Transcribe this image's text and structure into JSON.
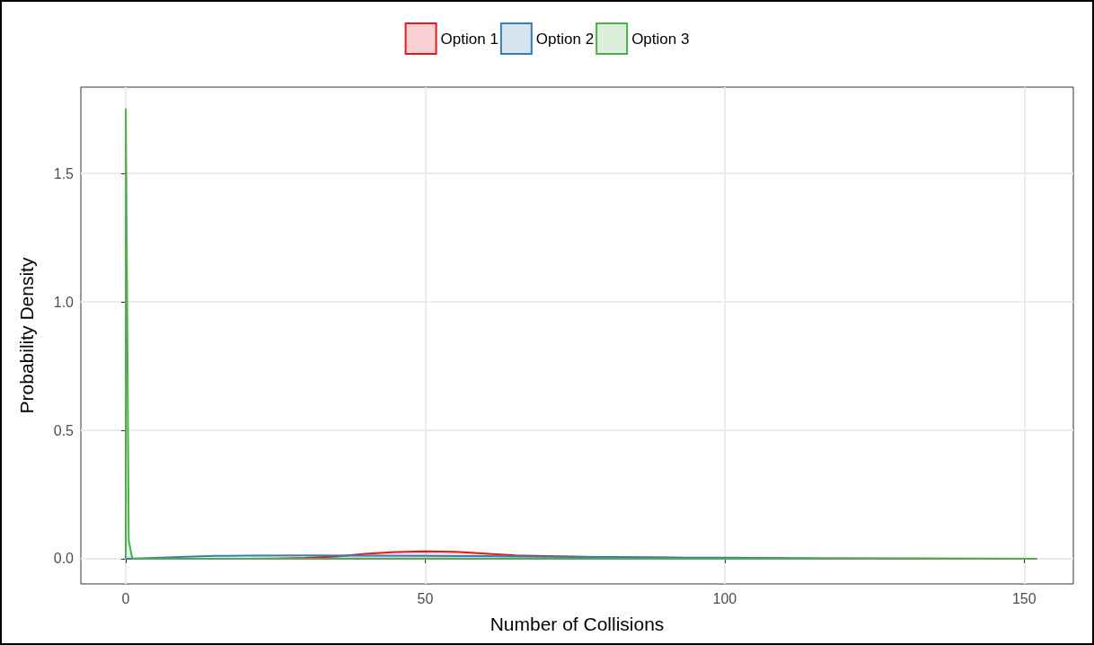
{
  "chart_data": {
    "type": "area",
    "xlabel": "Number of Collisions",
    "ylabel": "Probability Density",
    "xlim": [
      -7.5,
      158.2
    ],
    "xticks": [
      0,
      50,
      100,
      150
    ],
    "ylim": [
      -0.098,
      1.836
    ],
    "yticks": [
      {
        "value": 0,
        "label": "0.0"
      },
      0.5,
      {
        "value": 1,
        "label": "1.0"
      },
      1.5
    ],
    "grid": true,
    "legend": "top",
    "marker": "none",
    "line_style": "solid",
    "series": [
      {
        "name": "Option 1",
        "color": "#e41a1c",
        "x": [
          0,
          10,
          20,
          25,
          30,
          35,
          40,
          45,
          50,
          55,
          60,
          65,
          70,
          80,
          90,
          100,
          120,
          152
        ],
        "values": [
          0,
          0,
          0,
          0.001,
          0.003,
          0.009,
          0.019,
          0.026,
          0.029,
          0.027,
          0.02,
          0.013,
          0.01,
          0.006,
          0.004,
          0.002,
          0.001,
          0
        ]
      },
      {
        "name": "Option 2",
        "color": "#377eb8",
        "x": [
          0,
          5,
          10,
          15,
          20,
          30,
          40,
          50,
          60,
          70,
          80,
          90,
          100,
          115,
          130,
          152
        ],
        "values": [
          0,
          0.003,
          0.008,
          0.011,
          0.012,
          0.013,
          0.012,
          0.011,
          0.01,
          0.008,
          0.007,
          0.005,
          0.004,
          0.002,
          0.001,
          0
        ]
      },
      {
        "name": "Option 3",
        "color": "#4daf4a",
        "x": [
          0,
          0.01,
          0.5,
          1.1,
          5,
          50,
          100,
          152
        ],
        "values": [
          0,
          1.75,
          0.07,
          0,
          0,
          0,
          0,
          0
        ]
      }
    ]
  }
}
